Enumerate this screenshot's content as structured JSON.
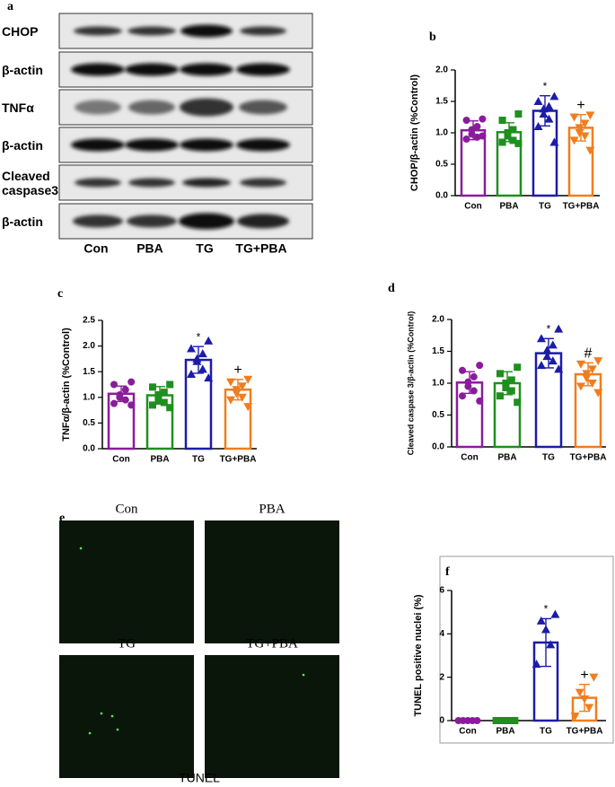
{
  "blot": {
    "label": "a",
    "rows": [
      "CHOP",
      "β-actin",
      "TNFα",
      "β-actin",
      "Cleaved caspase3",
      "β-actin"
    ],
    "lanes": [
      "Con",
      "PBA",
      "TG",
      "TG+PBA"
    ]
  },
  "chart_data": [
    {
      "type": "bar",
      "label": "b",
      "y_label": "CHOP/β-actin (%Control)",
      "categories": [
        "Con",
        "PBA",
        "TG",
        "TG+PBA"
      ],
      "colors": [
        "#8a1c9c",
        "#1f8f1f",
        "#1c1ca8",
        "#f07d1e"
      ],
      "values": [
        1.04,
        1.01,
        1.35,
        1.08
      ],
      "errors": [
        0.15,
        0.15,
        0.24,
        0.21
      ],
      "points": [
        [
          1.22,
          1.2,
          1.1,
          1.05,
          0.98,
          0.93,
          0.9,
          0.95
        ],
        [
          1.3,
          1.2,
          1.05,
          1.0,
          0.95,
          0.88,
          0.85,
          0.83
        ],
        [
          1.58,
          1.5,
          1.42,
          1.38,
          1.3,
          1.22,
          1.1,
          0.85
        ],
        [
          1.28,
          1.25,
          1.15,
          1.08,
          1.0,
          0.95,
          0.88,
          0.72
        ]
      ],
      "annotations": [
        null,
        null,
        "*",
        "+"
      ],
      "ylim": [
        0,
        2.0
      ],
      "yticks": [
        {
          "value": 0,
          "label": "0.0"
        },
        0.5,
        {
          "value": 1,
          "label": "1.0"
        },
        1.5,
        {
          "value": 2,
          "label": "2.0"
        }
      ]
    },
    {
      "type": "bar",
      "label": "c",
      "y_label": "TNFα/β-actin (%Control)",
      "categories": [
        "Con",
        "PBA",
        "TG",
        "TG+PBA"
      ],
      "colors": [
        "#8a1c9c",
        "#1f8f1f",
        "#1c1ca8",
        "#f07d1e"
      ],
      "values": [
        1.07,
        1.04,
        1.73,
        1.15
      ],
      "errors": [
        0.15,
        0.17,
        0.26,
        0.2
      ],
      "points": [
        [
          1.3,
          1.25,
          1.15,
          1.05,
          1.0,
          0.95,
          0.88,
          0.85
        ],
        [
          1.25,
          1.2,
          1.1,
          1.05,
          0.95,
          0.9,
          0.85,
          0.8
        ],
        [
          2.1,
          1.95,
          1.85,
          1.75,
          1.7,
          1.55,
          1.45,
          1.38
        ],
        [
          1.35,
          1.3,
          1.22,
          1.15,
          1.08,
          1.0,
          0.95,
          0.82
        ]
      ],
      "annotations": [
        null,
        null,
        "*",
        "+"
      ],
      "ylim": [
        0,
        2.5
      ],
      "yticks": [
        {
          "value": 0,
          "label": "0.0"
        },
        0.5,
        {
          "value": 1,
          "label": "1.0"
        },
        1.5,
        {
          "value": 2,
          "label": "2.0"
        },
        2.5
      ]
    },
    {
      "type": "bar",
      "label": "d",
      "y_label": "Cleaved caspase 3/β-actin (%Control)",
      "categories": [
        "Con",
        "PBA",
        "TG",
        "TG+PBA"
      ],
      "colors": [
        "#8a1c9c",
        "#1f8f1f",
        "#1c1ca8",
        "#f07d1e"
      ],
      "values": [
        1.01,
        1.0,
        1.47,
        1.14
      ],
      "errors": [
        0.17,
        0.18,
        0.23,
        0.18
      ],
      "points": [
        [
          1.28,
          1.2,
          1.1,
          1.02,
          0.95,
          0.88,
          0.8,
          0.72
        ],
        [
          1.25,
          1.15,
          1.05,
          1.0,
          0.93,
          0.88,
          0.8,
          0.7
        ],
        [
          1.85,
          1.7,
          1.6,
          1.52,
          1.42,
          1.35,
          1.28,
          1.22
        ],
        [
          1.35,
          1.3,
          1.22,
          1.15,
          1.08,
          1.0,
          0.95,
          0.85
        ]
      ],
      "annotations": [
        null,
        null,
        "*",
        "#"
      ],
      "ylim": [
        0,
        2.0
      ],
      "yticks": [
        {
          "value": 0,
          "label": "0.0"
        },
        0.5,
        {
          "value": 1,
          "label": "1.0"
        },
        1.5,
        {
          "value": 2,
          "label": "2.0"
        }
      ]
    },
    {
      "type": "bar",
      "label": "f",
      "y_label": "TUNEL positive nuclei (%)",
      "categories": [
        "Con",
        "PBA",
        "TG",
        "TG+PBA"
      ],
      "colors": [
        "#8a1c9c",
        "#1f8f1f",
        "#1c1ca8",
        "#f07d1e"
      ],
      "values": [
        0,
        0.02,
        3.6,
        1.05
      ],
      "errors": [
        0,
        0,
        1.1,
        0.62
      ],
      "points": [
        [
          0,
          0,
          0,
          0,
          0
        ],
        [
          0,
          0,
          0,
          0,
          0
        ],
        [
          4.9,
          4.6,
          4.2,
          3.5,
          2.6
        ],
        [
          2.0,
          1.3,
          1.0,
          0.6,
          0.2
        ]
      ],
      "annotations": [
        null,
        null,
        "*",
        "+"
      ],
      "ylim": [
        0,
        6
      ],
      "yticks": [
        0,
        2,
        4,
        6
      ]
    }
  ],
  "tunel": {
    "label": "e",
    "panels": [
      "Con",
      "PBA",
      "TG",
      "TG+PBA"
    ],
    "caption": "TUNEL"
  }
}
